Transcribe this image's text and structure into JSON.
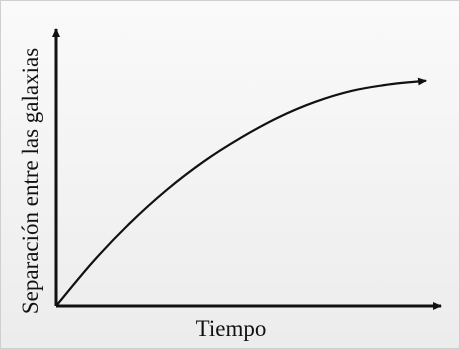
{
  "chart_data": {
    "type": "line",
    "title": "",
    "xlabel": "Tiempo",
    "ylabel": "Separación entre las galaxias",
    "xlim": [
      0,
      1
    ],
    "ylim": [
      0,
      1
    ],
    "grid": false,
    "legend": "none",
    "tick_labels": false,
    "series": [
      {
        "x": [
          0,
          0.1,
          0.2,
          0.3,
          0.4,
          0.5,
          0.6,
          0.7,
          0.8,
          0.9,
          1.0
        ],
        "y": [
          0,
          0.167,
          0.313,
          0.439,
          0.546,
          0.635,
          0.711,
          0.77,
          0.812,
          0.836,
          0.85
        ]
      }
    ],
    "colors": {
      "axes": "#111111",
      "line": "#111111",
      "background": "#f3f3f3"
    }
  }
}
